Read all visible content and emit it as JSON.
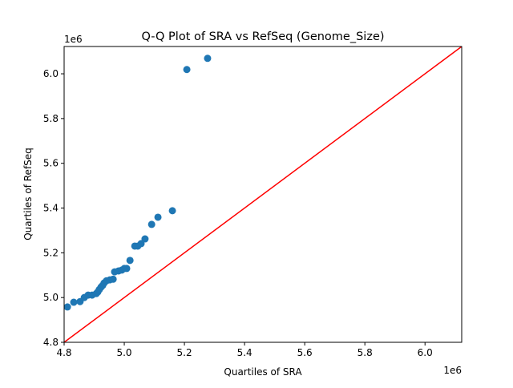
{
  "chart_data": {
    "type": "scatter",
    "title": "Q-Q Plot of SRA vs RefSeq (Genome_Size)",
    "xlabel": "Quartiles of SRA",
    "ylabel": "Quartiles of RefSeq",
    "x_offset_label": "1e6",
    "y_offset_label": "1e6",
    "xlim": [
      4.8,
      6.122
    ],
    "ylim": [
      4.8,
      6.122
    ],
    "xticks": [
      4.8,
      5.0,
      5.2,
      5.4,
      5.6,
      5.8,
      6.0
    ],
    "yticks": [
      4.8,
      5.0,
      5.2,
      5.4,
      5.6,
      5.8,
      6.0
    ],
    "xtick_labels": [
      "4.8",
      "5.0",
      "5.2",
      "5.4",
      "5.6",
      "5.8",
      "6.0"
    ],
    "ytick_labels": [
      "4.8",
      "5.0",
      "5.2",
      "5.4",
      "5.6",
      "5.8",
      "6.0"
    ],
    "grid": false,
    "point_color": "#1f77b4",
    "reference_line": {
      "type": "y=x",
      "color": "#ff0000"
    },
    "points": [
      [
        4.811,
        4.958
      ],
      [
        4.832,
        4.979
      ],
      [
        4.853,
        4.982
      ],
      [
        4.867,
        5.0
      ],
      [
        4.88,
        5.011
      ],
      [
        4.893,
        5.011
      ],
      [
        4.907,
        5.018
      ],
      [
        4.912,
        5.025
      ],
      [
        4.917,
        5.036
      ],
      [
        4.923,
        5.047
      ],
      [
        4.928,
        5.054
      ],
      [
        4.933,
        5.065
      ],
      [
        4.941,
        5.075
      ],
      [
        4.952,
        5.079
      ],
      [
        4.963,
        5.082
      ],
      [
        4.968,
        5.115
      ],
      [
        4.981,
        5.119
      ],
      [
        4.992,
        5.123
      ],
      [
        5.0,
        5.13
      ],
      [
        5.008,
        5.13
      ],
      [
        5.019,
        5.166
      ],
      [
        5.035,
        5.23
      ],
      [
        5.045,
        5.23
      ],
      [
        5.056,
        5.241
      ],
      [
        5.069,
        5.262
      ],
      [
        5.091,
        5.327
      ],
      [
        5.112,
        5.359
      ],
      [
        5.16,
        5.388
      ],
      [
        5.208,
        6.019
      ],
      [
        5.277,
        6.069
      ]
    ]
  }
}
